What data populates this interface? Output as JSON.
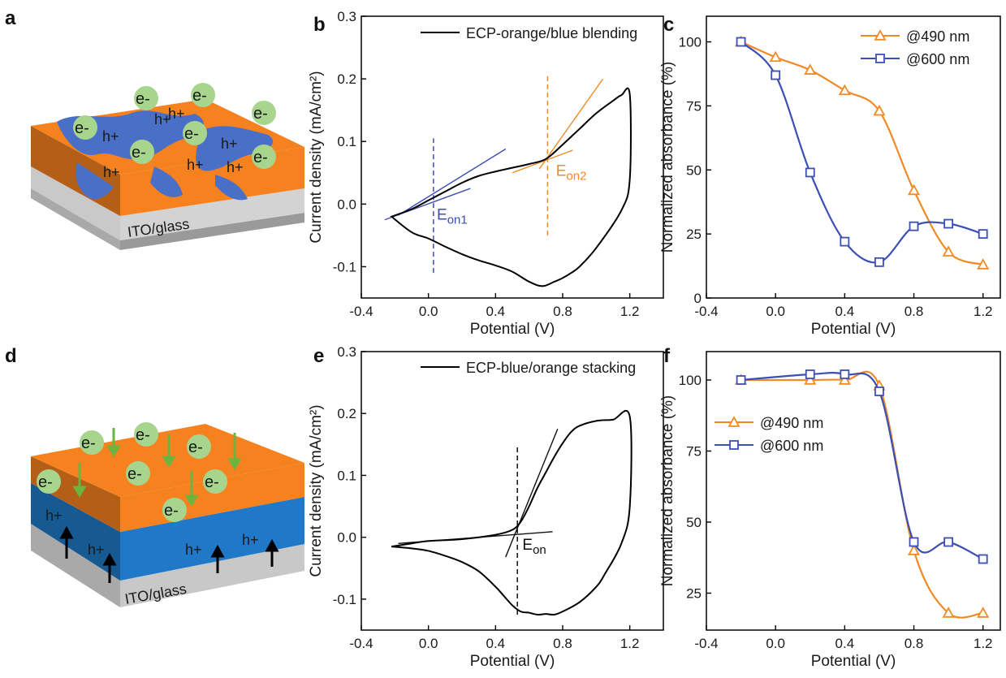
{
  "panels": {
    "a": "a",
    "b": "b",
    "c": "c",
    "d": "d",
    "e": "e",
    "f": "f"
  },
  "schematic_a": {
    "substrate": "ITO/glass",
    "electron": "e-",
    "hole": "h+",
    "colors": {
      "orange": "#f5821f",
      "blue": "#4a6fc6",
      "green": "#a8d58e",
      "gray": "#c8c8c8"
    }
  },
  "schematic_d": {
    "substrate": "ITO/glass",
    "electron": "e-",
    "hole": "h+",
    "colors": {
      "orange": "#f5821f",
      "blue": "#1f78c8",
      "green": "#a8d58e",
      "gray": "#c8c8c8",
      "arrow_green": "#6db33f"
    }
  },
  "chart_data": [
    {
      "panel": "b",
      "type": "line",
      "xlabel": "Potential (V)",
      "ylabel": "Current density (mA/cm²)",
      "xlim": [
        -0.4,
        1.4
      ],
      "ylim": [
        -0.15,
        0.3
      ],
      "xticks": [
        -0.4,
        0.0,
        0.4,
        0.8,
        1.2
      ],
      "xtick_labels": [
        "-0.4",
        "0.0",
        "0.4",
        "0.8",
        "1.2"
      ],
      "yticks": [
        -0.1,
        0.0,
        0.1,
        0.2,
        0.3
      ],
      "ytick_labels": [
        "-0.1",
        "0.0",
        "0.1",
        "0.2",
        "0.3"
      ],
      "legend": "top",
      "series": [
        {
          "name": "ECP-orange/blue blending",
          "color": "#000000",
          "x": [
            -0.22,
            -0.1,
            0.0,
            0.1,
            0.2,
            0.3,
            0.4,
            0.5,
            0.6,
            0.7,
            0.8,
            0.9,
            1.0,
            1.1,
            1.15,
            1.2,
            1.2,
            1.15,
            1.0,
            0.9,
            0.85,
            0.8,
            0.75,
            0.68,
            0.6,
            0.5,
            0.4,
            0.3,
            0.2,
            0.1,
            0.0,
            -0.1,
            -0.22
          ],
          "y": [
            -0.02,
            -0.008,
            0.006,
            0.02,
            0.034,
            0.045,
            0.052,
            0.058,
            0.064,
            0.072,
            0.095,
            0.12,
            0.145,
            0.165,
            0.174,
            0.175,
            0.04,
            -0.01,
            -0.07,
            -0.1,
            -0.11,
            -0.118,
            -0.124,
            -0.131,
            -0.124,
            -0.108,
            -0.098,
            -0.09,
            -0.08,
            -0.068,
            -0.055,
            -0.045,
            -0.02
          ]
        }
      ],
      "annotations": [
        {
          "label": "E",
          "sub": "on1",
          "color": "#3c4fb4",
          "x": 0.05,
          "y": -0.025
        },
        {
          "label": "E",
          "sub": "on2",
          "color": "#f08a24",
          "x": 0.76,
          "y": 0.045
        }
      ],
      "onset_markers": [
        {
          "x": 0.03,
          "y0": -0.11,
          "y1": 0.105,
          "color": "#3c4fb4"
        },
        {
          "x": 0.71,
          "y0": -0.05,
          "y1": 0.205,
          "color": "#f08a24"
        }
      ],
      "tangents": [
        {
          "x0": -0.26,
          "y0": -0.025,
          "x1": 0.25,
          "y1": 0.025,
          "color": "#3c4fb4"
        },
        {
          "x0": -0.18,
          "y0": -0.018,
          "x1": 0.46,
          "y1": 0.088,
          "color": "#3c4fb4"
        },
        {
          "x0": 0.5,
          "y0": 0.05,
          "x1": 0.86,
          "y1": 0.086,
          "color": "#f08a24"
        },
        {
          "x0": 0.66,
          "y0": 0.056,
          "x1": 1.04,
          "y1": 0.2,
          "color": "#f08a24"
        }
      ]
    },
    {
      "panel": "c",
      "type": "line",
      "xlabel": "Potential (V)",
      "ylabel": "Normalized absorbance (%)",
      "xlim": [
        -0.4,
        1.3
      ],
      "ylim": [
        0,
        110
      ],
      "xticks": [
        -0.4,
        0.0,
        0.4,
        0.8,
        1.2
      ],
      "xtick_labels": [
        "-0.4",
        "0.0",
        "0.4",
        "0.8",
        "1.2"
      ],
      "yticks": [
        0,
        25,
        50,
        75,
        100
      ],
      "ytick_labels": [
        "0",
        "25",
        "50",
        "75",
        "100"
      ],
      "legend": "top-right",
      "series": [
        {
          "name": "@490 nm",
          "color": "#f08a24",
          "marker": "triangle",
          "x": [
            -0.2,
            0.0,
            0.2,
            0.4,
            0.6,
            0.8,
            1.0,
            1.2
          ],
          "y": [
            100,
            94,
            89,
            81,
            73,
            42,
            18,
            13
          ]
        },
        {
          "name": "@600 nm",
          "color": "#3c4fb4",
          "marker": "square",
          "x": [
            -0.2,
            0.0,
            0.2,
            0.4,
            0.6,
            0.8,
            1.0,
            1.2
          ],
          "y": [
            100,
            87,
            49,
            22,
            14,
            28,
            29,
            25
          ]
        }
      ]
    },
    {
      "panel": "e",
      "type": "line",
      "xlabel": "Potential (V)",
      "ylabel": "Current density (mA/cm²)",
      "xlim": [
        -0.4,
        1.4
      ],
      "ylim": [
        -0.15,
        0.3
      ],
      "xticks": [
        -0.4,
        0.0,
        0.4,
        0.8,
        1.2
      ],
      "xtick_labels": [
        "-0.4",
        "0.0",
        "0.4",
        "0.8",
        "1.2"
      ],
      "yticks": [
        -0.1,
        0.0,
        0.1,
        0.2,
        0.3
      ],
      "ytick_labels": [
        "-0.1",
        "0.0",
        "0.1",
        "0.2",
        "0.3"
      ],
      "legend": "top",
      "series": [
        {
          "name": "ECP-blue/orange stacking",
          "color": "#000000",
          "x": [
            -0.22,
            -0.1,
            0.0,
            0.2,
            0.4,
            0.5,
            0.55,
            0.6,
            0.65,
            0.7,
            0.75,
            0.8,
            0.85,
            0.9,
            1.0,
            1.1,
            1.2,
            1.2,
            1.15,
            1.05,
            1.0,
            0.9,
            0.8,
            0.75,
            0.7,
            0.65,
            0.6,
            0.55,
            0.5,
            0.45,
            0.4,
            0.3,
            0.2,
            0.1,
            0.0,
            -0.1,
            -0.22
          ],
          "y": [
            -0.015,
            -0.01,
            -0.006,
            -0.003,
            0.004,
            0.012,
            0.025,
            0.05,
            0.08,
            0.105,
            0.13,
            0.152,
            0.17,
            0.18,
            0.188,
            0.19,
            0.195,
            0.05,
            -0.01,
            -0.06,
            -0.08,
            -0.105,
            -0.12,
            -0.125,
            -0.124,
            -0.125,
            -0.122,
            -0.12,
            -0.11,
            -0.095,
            -0.08,
            -0.055,
            -0.04,
            -0.03,
            -0.022,
            -0.018,
            -0.015
          ]
        }
      ],
      "annotations": [
        {
          "label": "E",
          "sub": "on",
          "color": "#111111",
          "x": 0.56,
          "y": -0.02
        }
      ],
      "onset_markers": [
        {
          "x": 0.53,
          "y0": -0.125,
          "y1": 0.15,
          "color": "#111111"
        }
      ],
      "tangents": [
        {
          "x0": -0.18,
          "y0": -0.01,
          "x1": 0.74,
          "y1": 0.009,
          "color": "#111111"
        },
        {
          "x0": 0.46,
          "y0": -0.032,
          "x1": 0.77,
          "y1": 0.175,
          "color": "#111111"
        }
      ]
    },
    {
      "panel": "f",
      "type": "line",
      "xlabel": "Potential (V)",
      "ylabel": "Normalized absorbance (%)",
      "xlim": [
        -0.4,
        1.3
      ],
      "ylim": [
        12,
        110
      ],
      "xticks": [
        -0.4,
        0.0,
        0.4,
        0.8,
        1.2
      ],
      "xtick_labels": [
        "-0.4",
        "0.0",
        "0.4",
        "0.8",
        "1.2"
      ],
      "yticks": [
        25,
        50,
        75,
        100
      ],
      "ytick_labels": [
        "25",
        "50",
        "75",
        "100"
      ],
      "legend": "middle-left",
      "series": [
        {
          "name": "@490 nm",
          "color": "#f08a24",
          "marker": "triangle",
          "x": [
            -0.2,
            0.2,
            0.4,
            0.6,
            0.8,
            1.0,
            1.2
          ],
          "y": [
            100,
            100,
            100,
            98,
            40,
            18,
            18
          ]
        },
        {
          "name": "@600 nm",
          "color": "#3c4fb4",
          "marker": "square",
          "x": [
            -0.2,
            0.2,
            0.4,
            0.6,
            0.8,
            1.0,
            1.2
          ],
          "y": [
            100,
            102,
            102,
            96,
            43,
            43,
            37
          ]
        }
      ]
    }
  ]
}
